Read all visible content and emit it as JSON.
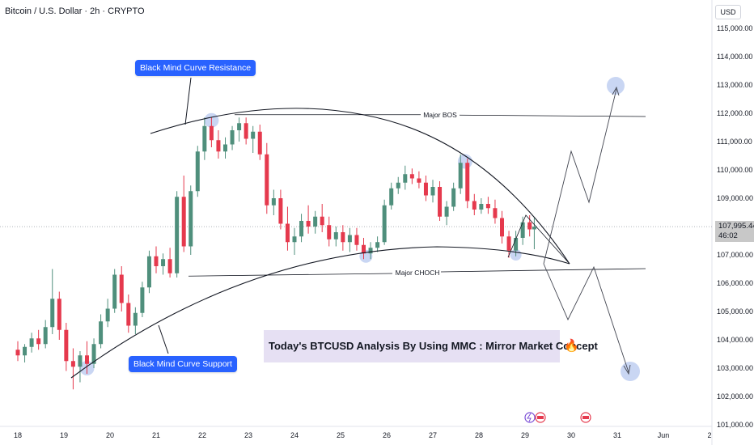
{
  "header": {
    "symbol_title": "Bitcoin / U.S. Dollar · 2h · CRYPTO",
    "currency": "USD"
  },
  "price_axis": {
    "ticks": [
      "115,000.00",
      "114,000.00",
      "113,000.00",
      "112,000.00",
      "111,000.00",
      "110,000.00",
      "109,000.00",
      "108,000.00",
      "107,000.00",
      "106,000.00",
      "105,000.00",
      "104,000.00",
      "103,000.00",
      "102,000.00",
      "101,000.00"
    ],
    "last_price": "107,995.44",
    "countdown": "46:02"
  },
  "time_axis": {
    "labels": [
      "18",
      "19",
      "20",
      "21",
      "22",
      "23",
      "24",
      "25",
      "26",
      "27",
      "28",
      "29",
      "30",
      "31",
      "Jun",
      "2"
    ]
  },
  "annotations": {
    "resistance_label": "Black Mind Curve Resistance",
    "support_label": "Black Mind Curve Support",
    "major_bos": "Major BOS",
    "major_choch": "Major CHOCH",
    "banner": "Today's BTCUSD Analysis By Using MMC : Mirror Market Concept",
    "fire_icon": "fire-icon"
  },
  "colors": {
    "up": "#4f8f7c",
    "down": "#e5394d",
    "callout": "#2962ff",
    "banner_bg": "#e6e0f3",
    "highlight": "#b7c8ef"
  },
  "chart_data": {
    "type": "candlestick",
    "title": "Bitcoin / U.S. Dollar · 2h · CRYPTO",
    "ylabel": "USD",
    "ylim": [
      101000,
      115500
    ],
    "y_ticks": [
      115000,
      114000,
      113000,
      112000,
      111000,
      110000,
      109000,
      108000,
      107000,
      106000,
      105000,
      104000,
      103000,
      102000,
      101000
    ],
    "x_ticks": [
      "18",
      "19",
      "20",
      "21",
      "22",
      "23",
      "24",
      "25",
      "26",
      "27",
      "28",
      "29",
      "30",
      "31",
      "Jun",
      "2"
    ],
    "last_price": 107995.44,
    "levels": [
      {
        "name": "Major BOS",
        "price": 111950
      },
      {
        "name": "Major CHOCH",
        "price": 106250
      }
    ],
    "candles": [
      {
        "day": 18.0,
        "o": 103650,
        "h": 103950,
        "l": 103250,
        "c": 103450
      },
      {
        "day": 18.15,
        "o": 103450,
        "h": 103850,
        "l": 103200,
        "c": 103750
      },
      {
        "day": 18.3,
        "o": 103750,
        "h": 104250,
        "l": 103550,
        "c": 104050
      },
      {
        "day": 18.45,
        "o": 104050,
        "h": 104350,
        "l": 103650,
        "c": 103850
      },
      {
        "day": 18.6,
        "o": 103850,
        "h": 104700,
        "l": 103700,
        "c": 104450
      },
      {
        "day": 18.75,
        "o": 104450,
        "h": 106500,
        "l": 104200,
        "c": 105450
      },
      {
        "day": 18.9,
        "o": 105450,
        "h": 105700,
        "l": 104000,
        "c": 104350
      },
      {
        "day": 19.05,
        "o": 104350,
        "h": 104600,
        "l": 102900,
        "c": 103250
      },
      {
        "day": 19.2,
        "o": 103250,
        "h": 103700,
        "l": 102250,
        "c": 103050
      },
      {
        "day": 19.35,
        "o": 103050,
        "h": 103600,
        "l": 102500,
        "c": 103450
      },
      {
        "day": 19.5,
        "o": 103450,
        "h": 103950,
        "l": 102800,
        "c": 103150
      },
      {
        "day": 19.65,
        "o": 103150,
        "h": 104050,
        "l": 103000,
        "c": 103850
      },
      {
        "day": 19.8,
        "o": 103850,
        "h": 104900,
        "l": 103700,
        "c": 104650
      },
      {
        "day": 19.95,
        "o": 104650,
        "h": 105450,
        "l": 104450,
        "c": 105100
      },
      {
        "day": 20.1,
        "o": 105100,
        "h": 106500,
        "l": 104950,
        "c": 106300
      },
      {
        "day": 20.25,
        "o": 106300,
        "h": 106600,
        "l": 105000,
        "c": 105300
      },
      {
        "day": 20.4,
        "o": 105300,
        "h": 105600,
        "l": 104250,
        "c": 104500
      },
      {
        "day": 20.55,
        "o": 104500,
        "h": 105150,
        "l": 104200,
        "c": 104950
      },
      {
        "day": 20.7,
        "o": 104950,
        "h": 106050,
        "l": 104800,
        "c": 105850
      },
      {
        "day": 20.85,
        "o": 105850,
        "h": 107150,
        "l": 105650,
        "c": 106950
      },
      {
        "day": 21.0,
        "o": 106950,
        "h": 107300,
        "l": 106350,
        "c": 106600
      },
      {
        "day": 21.15,
        "o": 106600,
        "h": 107050,
        "l": 106300,
        "c": 106850
      },
      {
        "day": 21.3,
        "o": 106850,
        "h": 107250,
        "l": 106200,
        "c": 106350
      },
      {
        "day": 21.45,
        "o": 106350,
        "h": 109250,
        "l": 106200,
        "c": 109050
      },
      {
        "day": 21.6,
        "o": 109050,
        "h": 109800,
        "l": 107100,
        "c": 107300
      },
      {
        "day": 21.75,
        "o": 107300,
        "h": 109450,
        "l": 107000,
        "c": 109250
      },
      {
        "day": 21.9,
        "o": 109250,
        "h": 110850,
        "l": 109050,
        "c": 110650
      },
      {
        "day": 22.05,
        "o": 110650,
        "h": 111850,
        "l": 110350,
        "c": 111550
      },
      {
        "day": 22.2,
        "o": 111550,
        "h": 111850,
        "l": 110800,
        "c": 111050
      },
      {
        "day": 22.35,
        "o": 111050,
        "h": 111400,
        "l": 110400,
        "c": 110650
      },
      {
        "day": 22.5,
        "o": 110650,
        "h": 111150,
        "l": 110400,
        "c": 110900
      },
      {
        "day": 22.65,
        "o": 110900,
        "h": 111550,
        "l": 110700,
        "c": 111400
      },
      {
        "day": 22.8,
        "o": 111400,
        "h": 111850,
        "l": 111000,
        "c": 111650
      },
      {
        "day": 22.95,
        "o": 111650,
        "h": 111850,
        "l": 110900,
        "c": 111100
      },
      {
        "day": 23.1,
        "o": 111100,
        "h": 111550,
        "l": 110600,
        "c": 111350
      },
      {
        "day": 23.25,
        "o": 111350,
        "h": 111600,
        "l": 110350,
        "c": 110550
      },
      {
        "day": 23.4,
        "o": 110550,
        "h": 110950,
        "l": 108450,
        "c": 108750
      },
      {
        "day": 23.55,
        "o": 108750,
        "h": 109300,
        "l": 108400,
        "c": 109000
      },
      {
        "day": 23.7,
        "o": 109000,
        "h": 109300,
        "l": 107900,
        "c": 108100
      },
      {
        "day": 23.85,
        "o": 108100,
        "h": 108700,
        "l": 107150,
        "c": 107450
      },
      {
        "day": 24.0,
        "o": 107450,
        "h": 107950,
        "l": 107000,
        "c": 107650
      },
      {
        "day": 24.15,
        "o": 107650,
        "h": 108450,
        "l": 107450,
        "c": 108200
      },
      {
        "day": 24.3,
        "o": 108200,
        "h": 108750,
        "l": 107750,
        "c": 108000
      },
      {
        "day": 24.45,
        "o": 108000,
        "h": 108550,
        "l": 107750,
        "c": 108350
      },
      {
        "day": 24.6,
        "o": 108350,
        "h": 108800,
        "l": 107800,
        "c": 108050
      },
      {
        "day": 24.75,
        "o": 108050,
        "h": 108350,
        "l": 107300,
        "c": 107550
      },
      {
        "day": 24.9,
        "o": 107550,
        "h": 108000,
        "l": 107300,
        "c": 107800
      },
      {
        "day": 25.05,
        "o": 107800,
        "h": 108050,
        "l": 107150,
        "c": 107450
      },
      {
        "day": 25.2,
        "o": 107450,
        "h": 107950,
        "l": 107100,
        "c": 107700
      },
      {
        "day": 25.35,
        "o": 107700,
        "h": 107950,
        "l": 107150,
        "c": 107350
      },
      {
        "day": 25.5,
        "o": 107350,
        "h": 107600,
        "l": 106850,
        "c": 107050
      },
      {
        "day": 25.65,
        "o": 107050,
        "h": 107450,
        "l": 106850,
        "c": 107250
      },
      {
        "day": 25.8,
        "o": 107250,
        "h": 107650,
        "l": 107100,
        "c": 107450
      },
      {
        "day": 25.95,
        "o": 107450,
        "h": 108950,
        "l": 107350,
        "c": 108750
      },
      {
        "day": 26.1,
        "o": 108750,
        "h": 109550,
        "l": 108600,
        "c": 109350
      },
      {
        "day": 26.25,
        "o": 109350,
        "h": 109750,
        "l": 109150,
        "c": 109550
      },
      {
        "day": 26.4,
        "o": 109550,
        "h": 110150,
        "l": 109300,
        "c": 109850
      },
      {
        "day": 26.55,
        "o": 109850,
        "h": 110050,
        "l": 109500,
        "c": 109700
      },
      {
        "day": 26.7,
        "o": 109700,
        "h": 109950,
        "l": 109350,
        "c": 109550
      },
      {
        "day": 26.85,
        "o": 109550,
        "h": 109800,
        "l": 108900,
        "c": 109100
      },
      {
        "day": 27.0,
        "o": 109100,
        "h": 109650,
        "l": 108850,
        "c": 109400
      },
      {
        "day": 27.15,
        "o": 109400,
        "h": 109600,
        "l": 108200,
        "c": 108350
      },
      {
        "day": 27.3,
        "o": 108350,
        "h": 108900,
        "l": 108050,
        "c": 108700
      },
      {
        "day": 27.45,
        "o": 108700,
        "h": 109550,
        "l": 108550,
        "c": 109350
      },
      {
        "day": 27.6,
        "o": 109350,
        "h": 110550,
        "l": 109150,
        "c": 110250
      },
      {
        "day": 27.75,
        "o": 110250,
        "h": 110400,
        "l": 108650,
        "c": 108900
      },
      {
        "day": 27.9,
        "o": 108900,
        "h": 109150,
        "l": 108400,
        "c": 108600
      },
      {
        "day": 28.05,
        "o": 108600,
        "h": 109000,
        "l": 108450,
        "c": 108800
      },
      {
        "day": 28.2,
        "o": 108800,
        "h": 109050,
        "l": 108450,
        "c": 108650
      },
      {
        "day": 28.35,
        "o": 108650,
        "h": 108950,
        "l": 108100,
        "c": 108300
      },
      {
        "day": 28.5,
        "o": 108300,
        "h": 108550,
        "l": 107400,
        "c": 107650
      },
      {
        "day": 28.65,
        "o": 107650,
        "h": 107850,
        "l": 106900,
        "c": 107150
      },
      {
        "day": 28.8,
        "o": 107150,
        "h": 107850,
        "l": 106950,
        "c": 107600
      },
      {
        "day": 28.95,
        "o": 107600,
        "h": 108350,
        "l": 107350,
        "c": 108150
      },
      {
        "day": 29.1,
        "o": 108150,
        "h": 108400,
        "l": 107650,
        "c": 107900
      },
      {
        "day": 29.2,
        "o": 107900,
        "h": 108300,
        "l": 107200,
        "c": 107995
      }
    ]
  }
}
